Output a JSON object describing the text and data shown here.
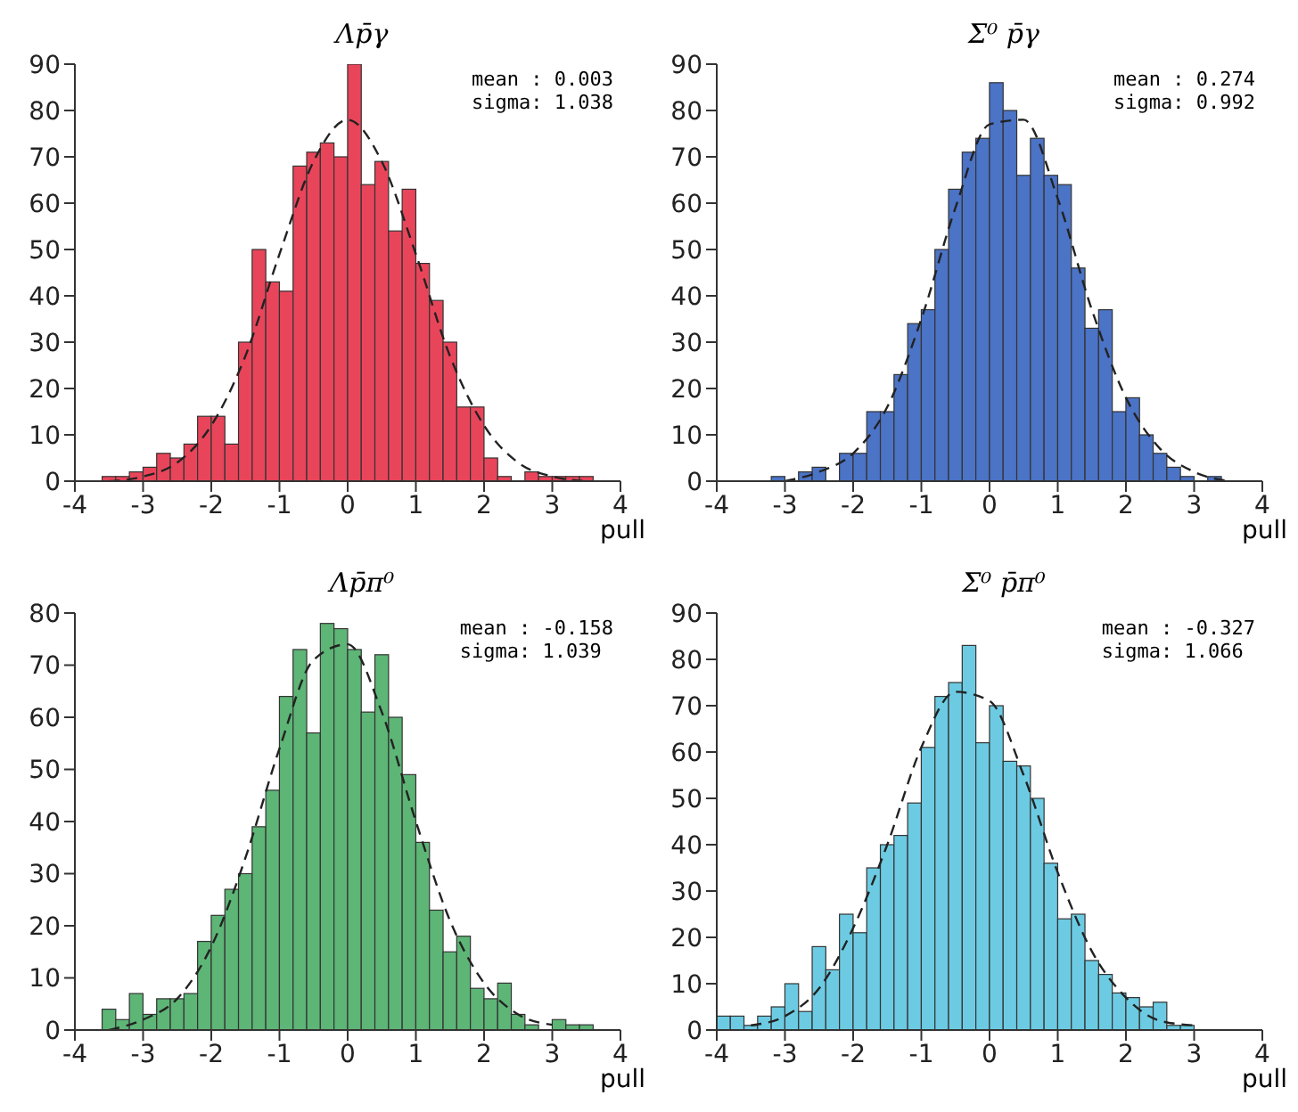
{
  "chart_data": [
    {
      "type": "histogram",
      "title": "Λp̄γ",
      "xlabel": "pull",
      "annotations": [
        "mean : 0.003",
        "sigma: 1.038"
      ],
      "xlim": [
        -4,
        4
      ],
      "xticks": [
        -4,
        -3,
        -2,
        -1,
        0,
        1,
        2,
        3,
        4
      ],
      "ylim": [
        0,
        90
      ],
      "yticks": [
        0,
        10,
        20,
        30,
        40,
        50,
        60,
        70,
        80,
        90
      ],
      "series": [
        {
          "color": "#e9455a",
          "bins": [
            -4,
            -3.8,
            -3.6,
            -3.4,
            -3.2,
            -3,
            -2.8,
            -2.6,
            -2.4,
            -2.2,
            -2,
            -1.8,
            -1.6,
            -1.4,
            -1.2,
            -1,
            -0.8,
            -0.6,
            -0.4,
            -0.2,
            0,
            0.2,
            0.4,
            0.6,
            0.8,
            1,
            1.2,
            1.4,
            1.6,
            1.8,
            2,
            2.2,
            2.4,
            2.6,
            2.8,
            3,
            3.2,
            3.4,
            3.6,
            3.8,
            4
          ],
          "values": [
            0,
            0,
            1,
            1,
            2,
            3,
            6,
            5,
            8,
            14,
            14,
            8,
            30,
            50,
            43,
            41,
            68,
            71,
            73,
            70,
            90,
            64,
            69,
            54,
            63,
            47,
            39,
            30,
            16,
            16,
            5,
            1,
            0,
            2,
            1,
            1,
            1,
            1,
            0,
            0
          ]
        },
        {
          "type": "line",
          "color": "#222222",
          "line_style": "dashed",
          "x": [
            -3.5,
            -3,
            -2.5,
            -2,
            -1.5,
            -1,
            -0.5,
            0,
            0.5,
            1,
            1.5,
            2,
            2.5,
            3,
            3.5
          ],
          "values": [
            0,
            1,
            4,
            12,
            27,
            49,
            69,
            78,
            69,
            49,
            27,
            12,
            4,
            1,
            0
          ]
        }
      ]
    },
    {
      "type": "histogram",
      "title": "Σ⁰ p̄γ",
      "xlabel": "pull",
      "annotations": [
        "mean : 0.274",
        "sigma: 0.992"
      ],
      "xlim": [
        -4,
        4
      ],
      "xticks": [
        -4,
        -3,
        -2,
        -1,
        0,
        1,
        2,
        3,
        4
      ],
      "ylim": [
        0,
        90
      ],
      "yticks": [
        0,
        10,
        20,
        30,
        40,
        50,
        60,
        70,
        80,
        90
      ],
      "series": [
        {
          "color": "#4b73c6",
          "bins": [
            -4,
            -3.8,
            -3.6,
            -3.4,
            -3.2,
            -3,
            -2.8,
            -2.6,
            -2.4,
            -2.2,
            -2,
            -1.8,
            -1.6,
            -1.4,
            -1.2,
            -1,
            -0.8,
            -0.6,
            -0.4,
            -0.2,
            0,
            0.2,
            0.4,
            0.6,
            0.8,
            1,
            1.2,
            1.4,
            1.6,
            1.8,
            2,
            2.2,
            2.4,
            2.6,
            2.8,
            3,
            3.2,
            3.4,
            3.6,
            3.8,
            4
          ],
          "values": [
            0,
            0,
            0,
            0,
            1,
            0,
            2,
            3,
            0,
            6,
            6,
            15,
            15,
            23,
            34,
            37,
            50,
            63,
            71,
            74,
            86,
            80,
            66,
            74,
            66,
            64,
            46,
            33,
            37,
            15,
            18,
            10,
            6,
            3,
            1,
            0,
            1,
            0,
            0,
            0
          ]
        },
        {
          "type": "line",
          "color": "#222222",
          "line_style": "dashed",
          "x": [
            -3,
            -2.5,
            -2,
            -1.5,
            -1,
            -0.5,
            0,
            0.5,
            1,
            1.5,
            2,
            2.5,
            3,
            3.5
          ],
          "values": [
            0,
            2,
            6,
            16,
            35,
            59,
            77,
            78,
            61,
            37,
            18,
            7,
            2,
            0
          ]
        }
      ]
    },
    {
      "type": "histogram",
      "title": "Λp̄π⁰",
      "xlabel": "pull",
      "annotations": [
        "mean : -0.158",
        "sigma: 1.039"
      ],
      "xlim": [
        -4,
        4
      ],
      "xticks": [
        -4,
        -3,
        -2,
        -1,
        0,
        1,
        2,
        3,
        4
      ],
      "ylim": [
        0,
        80
      ],
      "yticks": [
        0,
        10,
        20,
        30,
        40,
        50,
        60,
        70,
        80
      ],
      "series": [
        {
          "color": "#5db576",
          "bins": [
            -4,
            -3.8,
            -3.6,
            -3.4,
            -3.2,
            -3,
            -2.8,
            -2.6,
            -2.4,
            -2.2,
            -2,
            -1.8,
            -1.6,
            -1.4,
            -1.2,
            -1,
            -0.8,
            -0.6,
            -0.4,
            -0.2,
            0,
            0.2,
            0.4,
            0.6,
            0.8,
            1,
            1.2,
            1.4,
            1.6,
            1.8,
            2,
            2.2,
            2.4,
            2.6,
            2.8,
            3,
            3.2,
            3.4,
            3.6,
            3.8,
            4
          ],
          "values": [
            0,
            0,
            4,
            2,
            7,
            3,
            6,
            6,
            7,
            17,
            22,
            27,
            30,
            39,
            46,
            64,
            73,
            57,
            78,
            77,
            73,
            61,
            72,
            60,
            49,
            36,
            23,
            15,
            18,
            8,
            6,
            9,
            3,
            1,
            0,
            2,
            1,
            1,
            0,
            0
          ]
        },
        {
          "type": "line",
          "color": "#222222",
          "line_style": "dashed",
          "x": [
            -3.5,
            -3,
            -2.5,
            -2,
            -1.5,
            -1,
            -0.5,
            0,
            0.5,
            1,
            1.5,
            2,
            2.5,
            3
          ],
          "values": [
            0,
            2,
            6,
            16,
            33,
            54,
            71,
            74,
            61,
            40,
            21,
            9,
            3,
            1
          ]
        }
      ]
    },
    {
      "type": "histogram",
      "title": "Σ⁰ p̄π⁰",
      "xlabel": "pull",
      "annotations": [
        "mean : -0.327",
        "sigma: 1.066"
      ],
      "xlim": [
        -4,
        4
      ],
      "xticks": [
        -4,
        -3,
        -2,
        -1,
        0,
        1,
        2,
        3,
        4
      ],
      "ylim": [
        0,
        90
      ],
      "yticks": [
        0,
        10,
        20,
        30,
        40,
        50,
        60,
        70,
        80,
        90
      ],
      "series": [
        {
          "color": "#6ccbe2",
          "bins": [
            -4,
            -3.8,
            -3.6,
            -3.4,
            -3.2,
            -3,
            -2.8,
            -2.6,
            -2.4,
            -2.2,
            -2,
            -1.8,
            -1.6,
            -1.4,
            -1.2,
            -1,
            -0.8,
            -0.6,
            -0.4,
            -0.2,
            0,
            0.2,
            0.4,
            0.6,
            0.8,
            1,
            1.2,
            1.4,
            1.6,
            1.8,
            2,
            2.2,
            2.4,
            2.6,
            2.8,
            3,
            3.2,
            3.4,
            3.6,
            3.8,
            4
          ],
          "values": [
            3,
            3,
            1,
            3,
            5,
            10,
            4,
            18,
            13,
            25,
            21,
            35,
            40,
            42,
            49,
            61,
            72,
            75,
            83,
            62,
            70,
            58,
            57,
            50,
            36,
            24,
            25,
            15,
            12,
            8,
            7,
            5,
            6,
            1,
            1,
            0,
            0,
            0,
            0,
            0
          ]
        },
        {
          "type": "line",
          "color": "#222222",
          "line_style": "dashed",
          "x": [
            -3.5,
            -3,
            -2.5,
            -2,
            -1.5,
            -1,
            -0.5,
            0,
            0.5,
            1,
            1.5,
            2,
            2.5,
            3
          ],
          "values": [
            1,
            3,
            9,
            22,
            40,
            61,
            73,
            71,
            55,
            34,
            17,
            7,
            2,
            1
          ]
        }
      ]
    }
  ]
}
